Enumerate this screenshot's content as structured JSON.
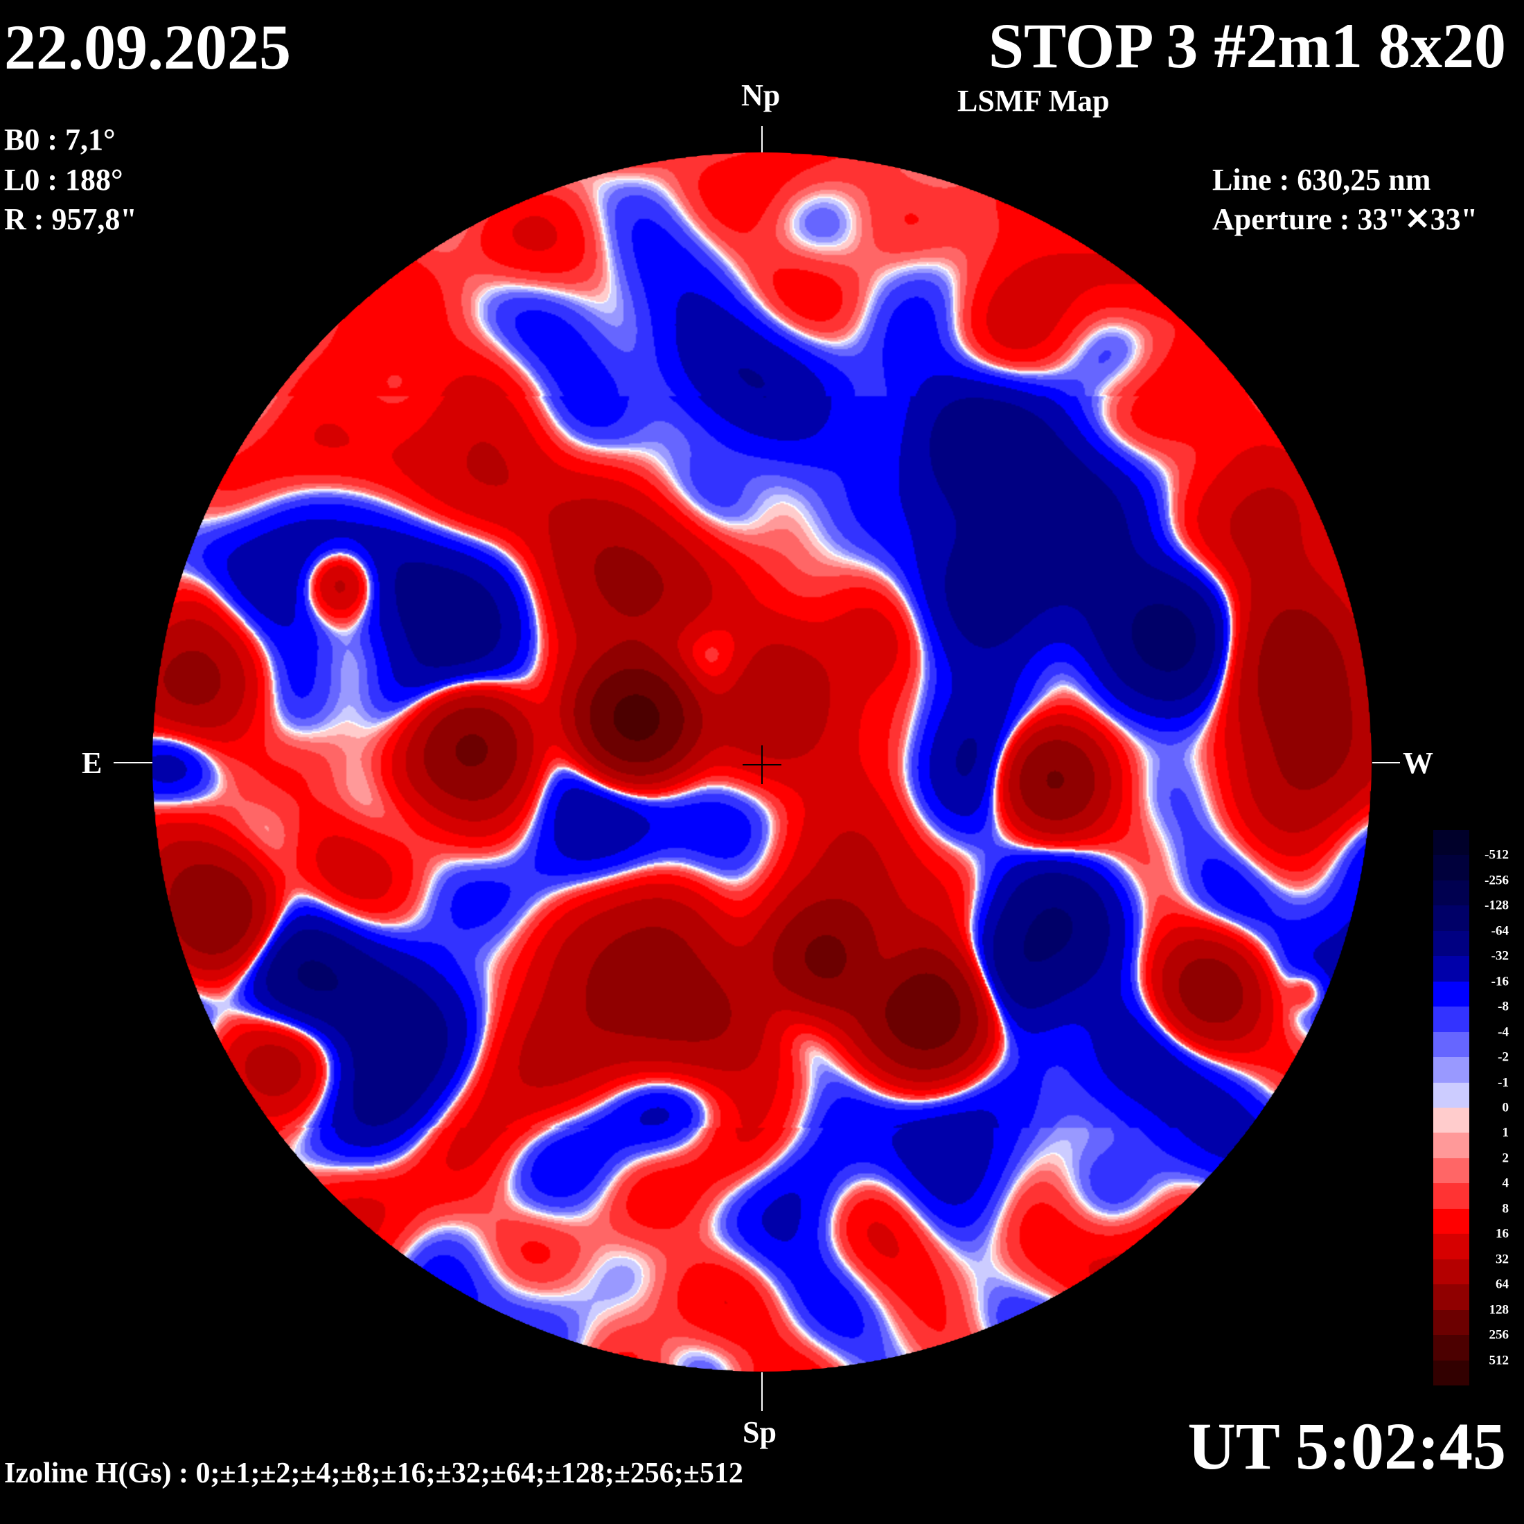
{
  "header": {
    "date": "22.09.2025",
    "title": "STOP 3 #2m1 8x20",
    "subtitle": "LSMF  Map"
  },
  "params": {
    "b0": "B0 : 7,1°",
    "l0": "L0 : 188°",
    "r": "R  : 957,8\""
  },
  "info": {
    "line": "Line :  630,25 nm",
    "aperture": "Aperture : 33\"✕33\""
  },
  "compass": {
    "north": "Np",
    "south": "Sp",
    "east": "E",
    "west": "W"
  },
  "colorbar": {
    "labels": [
      "-512",
      "-256",
      "-128",
      "-64",
      "-32",
      "-16",
      "-8",
      "-4",
      "-2",
      "-1",
      "0",
      "1",
      "2",
      "4",
      "8",
      "16",
      "32",
      "64",
      "128",
      "256",
      "512"
    ],
    "colors": [
      "#00002a",
      "#00003c",
      "#000050",
      "#000068",
      "#000082",
      "#0000aa",
      "#0000ff",
      "#3333ff",
      "#6666ff",
      "#9999ff",
      "#ccccff",
      "#ffcccc",
      "#ff9999",
      "#ff6666",
      "#ff3333",
      "#ff0000",
      "#d60000",
      "#b40000",
      "#900000",
      "#6c0000",
      "#4c0000",
      "#320000"
    ]
  },
  "footer": {
    "izoline": "Izoline H(Gs) : 0;±1;±2;±4;±8;±16;±32;±64;±128;±256;±512",
    "ut": "UT 5:02:45"
  }
}
